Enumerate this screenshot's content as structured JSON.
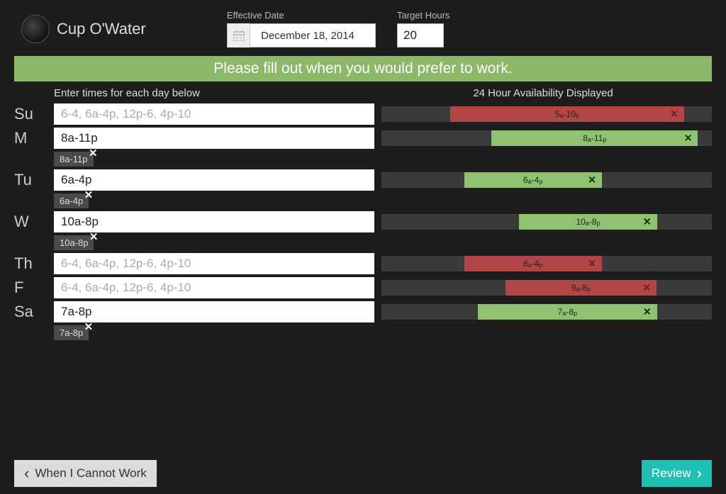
{
  "brand": {
    "name": "Cup O'Water"
  },
  "fields": {
    "effective_date_label": "Effective Date",
    "effective_date_value": "December 18, 2014",
    "target_hours_label": "Target Hours",
    "target_hours_value": "20"
  },
  "banner": "Please fill out when you would prefer to work.",
  "column_headers": {
    "left": "Enter times for each day below",
    "right": "24 Hour Availability Displayed"
  },
  "placeholder": "6-4, 6a-4p, 12p-6, 4p-10",
  "days": [
    {
      "abbr": "Su",
      "value": "",
      "chips": [],
      "segments": [
        {
          "label_a": "5",
          "ap_a": "a",
          "label_b": "10",
          "ap_b": "p",
          "color": "red",
          "start_pct": 20.8,
          "width_pct": 70.8
        }
      ]
    },
    {
      "abbr": "M",
      "value": "8a-11p",
      "chips": [
        "8a-11p"
      ],
      "segments": [
        {
          "label_a": "8",
          "ap_a": "a",
          "label_b": "11",
          "ap_b": "p",
          "color": "green",
          "start_pct": 33.3,
          "width_pct": 62.5
        }
      ]
    },
    {
      "abbr": "Tu",
      "value": "6a-4p",
      "chips": [
        "6a-4p"
      ],
      "segments": [
        {
          "label_a": "6",
          "ap_a": "a",
          "label_b": "4",
          "ap_b": "p",
          "color": "green",
          "start_pct": 25.0,
          "width_pct": 41.7
        }
      ]
    },
    {
      "abbr": "W",
      "value": "10a-8p",
      "chips": [
        "10a-8p"
      ],
      "segments": [
        {
          "label_a": "10",
          "ap_a": "a",
          "label_b": "8",
          "ap_b": "p",
          "color": "green",
          "start_pct": 41.7,
          "width_pct": 41.7
        }
      ]
    },
    {
      "abbr": "Th",
      "value": "",
      "chips": [],
      "segments": [
        {
          "label_a": "6",
          "ap_a": "a",
          "label_b": "4",
          "ap_b": "p",
          "color": "red",
          "start_pct": 25.0,
          "width_pct": 41.7
        }
      ]
    },
    {
      "abbr": "F",
      "value": "",
      "chips": [],
      "segments": [
        {
          "label_a": "9",
          "ap_a": "a",
          "label_b": "8",
          "ap_b": "p",
          "color": "red",
          "start_pct": 37.5,
          "width_pct": 45.8
        }
      ]
    },
    {
      "abbr": "Sa",
      "value": "7a-8p",
      "chips": [
        "7a-8p"
      ],
      "segments": [
        {
          "label_a": "7",
          "ap_a": "a",
          "label_b": "8",
          "ap_b": "p",
          "color": "green",
          "start_pct": 29.2,
          "width_pct": 54.2
        }
      ]
    }
  ],
  "footer": {
    "back_label": "When I Cannot Work",
    "review_label": "Review"
  }
}
